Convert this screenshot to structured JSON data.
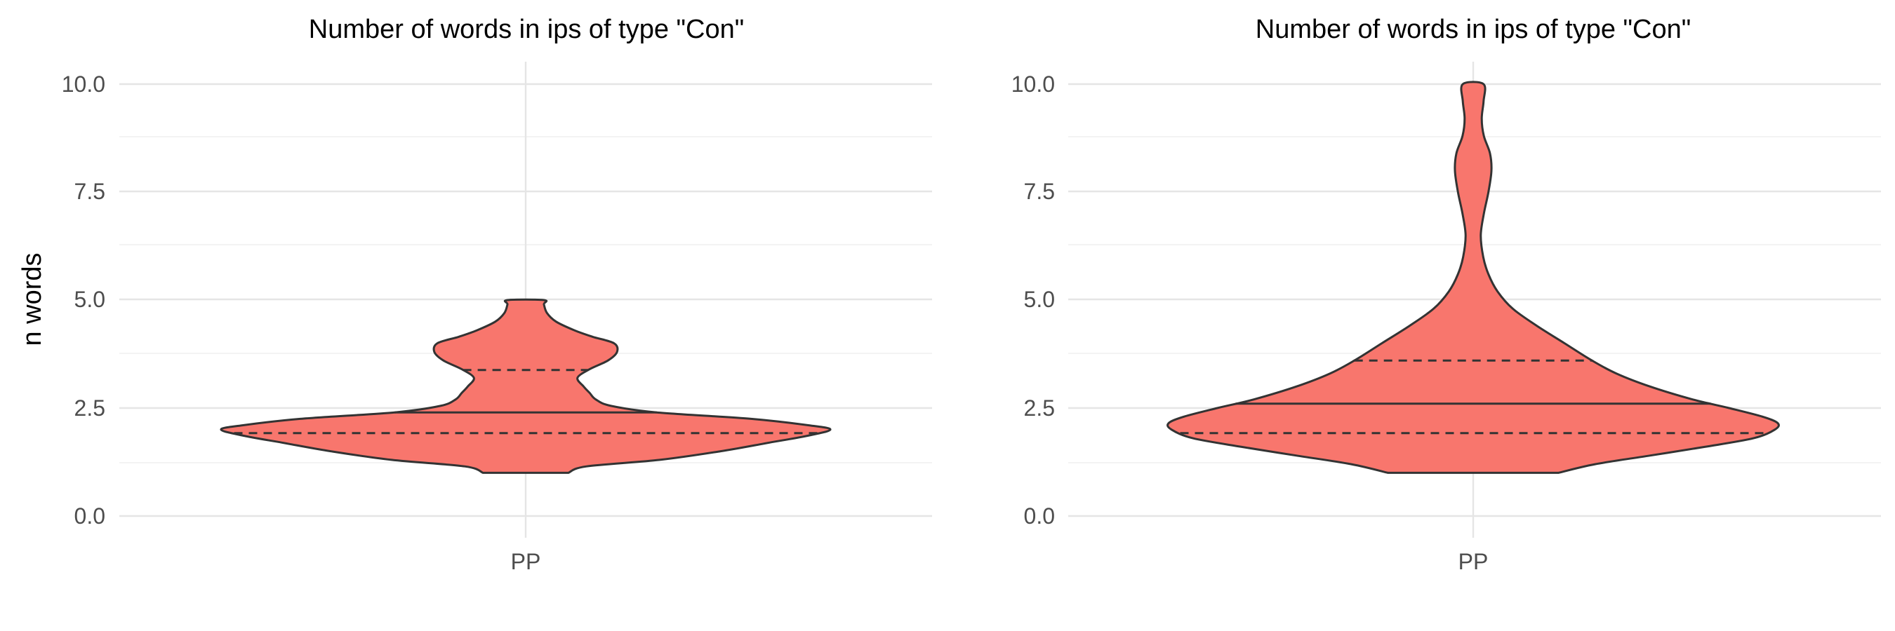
{
  "chart_data": [
    {
      "type": "violin",
      "title": "Number of words in ips of type \"Con\"",
      "xlabel": "",
      "ylabel": "n words",
      "categories": [
        "PP"
      ],
      "ylim": [
        -0.5,
        10.5
      ],
      "yticks": [
        "0.0",
        "2.5",
        "5.0",
        "7.5",
        "10.0"
      ],
      "ytick_values": [
        0,
        2.5,
        5,
        7.5,
        10
      ],
      "fill": "#f8766d",
      "outline": "#333333",
      "grid": true,
      "range": [
        1,
        5
      ],
      "quantiles": [
        1.92,
        2.4,
        3.38
      ],
      "density_profile": [
        [
          1.0,
          0.14
        ],
        [
          1.15,
          0.2
        ],
        [
          1.3,
          0.44
        ],
        [
          1.5,
          0.64
        ],
        [
          1.7,
          0.8
        ],
        [
          1.85,
          0.92
        ],
        [
          2.0,
          1.0
        ],
        [
          2.1,
          0.93
        ],
        [
          2.25,
          0.74
        ],
        [
          2.4,
          0.43
        ],
        [
          2.55,
          0.28
        ],
        [
          2.7,
          0.23
        ],
        [
          2.85,
          0.21
        ],
        [
          3.0,
          0.19
        ],
        [
          3.2,
          0.17
        ],
        [
          3.4,
          0.21
        ],
        [
          3.6,
          0.27
        ],
        [
          3.8,
          0.3
        ],
        [
          4.0,
          0.29
        ],
        [
          4.15,
          0.22
        ],
        [
          4.3,
          0.16
        ],
        [
          4.5,
          0.1
        ],
        [
          4.7,
          0.07
        ],
        [
          4.9,
          0.06
        ],
        [
          5.0,
          0.06
        ]
      ]
    },
    {
      "type": "violin",
      "title": "Number of words in ips of type \"Con\"",
      "xlabel": "",
      "ylabel": "",
      "categories": [
        "PP"
      ],
      "ylim": [
        -0.5,
        10.5
      ],
      "yticks": [
        "0.0",
        "2.5",
        "5.0",
        "7.5",
        "10.0"
      ],
      "ytick_values": [
        0,
        2.5,
        5,
        7.5,
        10
      ],
      "fill": "#f8766d",
      "outline": "#333333",
      "grid": true,
      "range": [
        1,
        10
      ],
      "quantiles": [
        1.92,
        2.6,
        3.6
      ],
      "density_profile": [
        [
          1.0,
          0.28
        ],
        [
          1.2,
          0.4
        ],
        [
          1.4,
          0.58
        ],
        [
          1.6,
          0.76
        ],
        [
          1.8,
          0.92
        ],
        [
          2.0,
          0.99
        ],
        [
          2.15,
          1.0
        ],
        [
          2.3,
          0.95
        ],
        [
          2.5,
          0.84
        ],
        [
          2.7,
          0.72
        ],
        [
          3.0,
          0.58
        ],
        [
          3.3,
          0.47
        ],
        [
          3.6,
          0.39
        ],
        [
          4.0,
          0.3
        ],
        [
          4.4,
          0.21
        ],
        [
          4.8,
          0.13
        ],
        [
          5.2,
          0.08
        ],
        [
          5.6,
          0.05
        ],
        [
          6.0,
          0.033
        ],
        [
          6.5,
          0.025
        ],
        [
          7.0,
          0.035
        ],
        [
          7.5,
          0.05
        ],
        [
          8.0,
          0.06
        ],
        [
          8.4,
          0.055
        ],
        [
          8.8,
          0.035
        ],
        [
          9.2,
          0.028
        ],
        [
          9.6,
          0.034
        ],
        [
          10.0,
          0.034
        ]
      ]
    }
  ]
}
